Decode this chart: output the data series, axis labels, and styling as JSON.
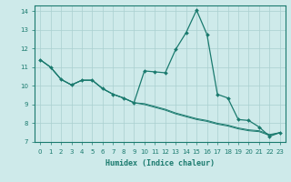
{
  "xlabel": "Humidex (Indice chaleur)",
  "bg_color": "#ceeaea",
  "grid_color": "#aacfcf",
  "line_color": "#1a7a6e",
  "xlim": [
    -0.5,
    23.5
  ],
  "ylim": [
    7,
    14.3
  ],
  "xticks": [
    0,
    1,
    2,
    3,
    4,
    5,
    6,
    7,
    8,
    9,
    10,
    11,
    12,
    13,
    14,
    15,
    16,
    17,
    18,
    19,
    20,
    21,
    22,
    23
  ],
  "yticks": [
    7,
    8,
    9,
    10,
    11,
    12,
    13,
    14
  ],
  "series1": {
    "x": [
      0,
      1,
      2,
      3,
      4,
      5,
      6,
      7,
      8,
      9,
      10,
      11,
      12,
      13,
      14,
      15,
      16,
      17,
      18,
      19,
      20,
      21,
      22,
      23
    ],
    "y": [
      11.4,
      11.0,
      10.35,
      10.05,
      10.3,
      10.3,
      9.85,
      9.55,
      9.35,
      9.1,
      10.8,
      10.75,
      10.7,
      11.95,
      12.85,
      14.05,
      12.75,
      9.55,
      9.35,
      8.2,
      8.15,
      7.8,
      7.3,
      7.5
    ]
  },
  "series2": {
    "x": [
      0,
      1,
      2,
      3,
      4,
      5,
      6,
      7,
      8,
      9,
      10,
      11,
      12,
      13,
      14,
      15,
      16,
      17,
      18,
      19,
      20,
      21,
      22,
      23
    ],
    "y": [
      11.4,
      11.0,
      10.35,
      10.05,
      10.3,
      10.3,
      9.85,
      9.55,
      9.35,
      9.1,
      9.0,
      8.85,
      8.7,
      8.5,
      8.35,
      8.2,
      8.1,
      7.95,
      7.85,
      7.7,
      7.6,
      7.55,
      7.35,
      7.5
    ]
  },
  "series3": {
    "x": [
      0,
      1,
      2,
      3,
      4,
      5,
      6,
      7,
      8,
      9,
      10,
      11,
      12,
      13,
      14,
      15,
      16,
      17,
      18,
      19,
      20,
      21,
      22,
      23
    ],
    "y": [
      11.4,
      11.0,
      10.35,
      10.05,
      10.3,
      10.3,
      9.85,
      9.55,
      9.35,
      9.1,
      9.05,
      8.9,
      8.75,
      8.55,
      8.4,
      8.25,
      8.15,
      8.0,
      7.9,
      7.75,
      7.65,
      7.6,
      7.4,
      7.5
    ]
  }
}
